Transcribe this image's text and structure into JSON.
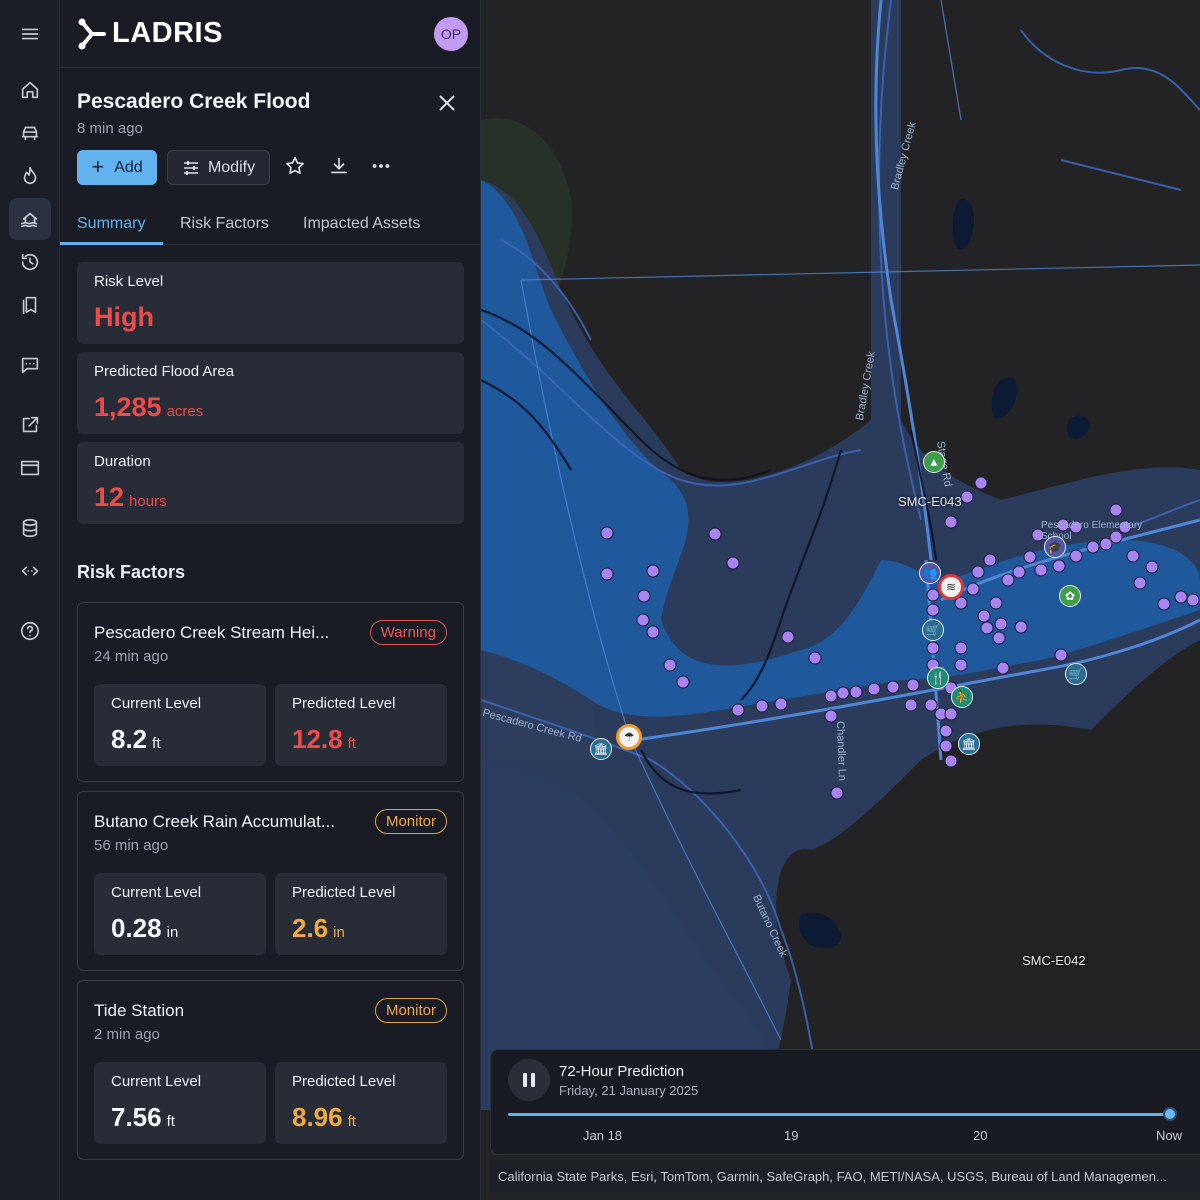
{
  "app": {
    "brand": "LADRIS",
    "user_initials": "OP"
  },
  "rail": {
    "items": [
      "menu-icon",
      "home-icon",
      "car-icon",
      "fire-icon",
      "flood-icon",
      "history-icon",
      "bookmarks-icon",
      "chat-icon",
      "external-link-icon",
      "window-icon",
      "database-icon",
      "code-icon",
      "help-icon"
    ],
    "active": "flood-icon"
  },
  "incident": {
    "title": "Pescadero Creek Flood",
    "updated": "8 min ago",
    "add_label": "Add",
    "modify_label": "Modify"
  },
  "tabs": [
    "Summary",
    "Risk Factors",
    "Impacted Assets"
  ],
  "summary": {
    "risk": {
      "label": "Risk Level",
      "value": "High"
    },
    "area": {
      "label": "Predicted Flood Area",
      "value": "1,285",
      "unit": "acres"
    },
    "duration": {
      "label": "Duration",
      "value": "12",
      "unit": "hours"
    }
  },
  "risk_factors_title": "Risk Factors",
  "risk_factors": [
    {
      "title": "Pescadero Creek Stream Hei...",
      "time": "24 min ago",
      "badge": "Warning",
      "current_label": "Current Level",
      "current": "8.2",
      "current_unit": "ft",
      "predicted_label": "Predicted Level",
      "predicted": "12.8",
      "predicted_unit": "ft"
    },
    {
      "title": "Butano Creek Rain Accumulat...",
      "time": "56 min ago",
      "badge": "Monitor",
      "current_label": "Current Level",
      "current": "0.28",
      "current_unit": "in",
      "predicted_label": "Predicted Level",
      "predicted": "2.6",
      "predicted_unit": "in"
    },
    {
      "title": "Tide Station",
      "time": "2 min ago",
      "badge": "Monitor",
      "current_label": "Current Level",
      "current": "7.56",
      "current_unit": "ft",
      "predicted_label": "Predicted Level",
      "predicted": "8.96",
      "predicted_unit": "ft"
    }
  ],
  "map": {
    "labels": {
      "e043": "SMC-E043",
      "e042": "SMC-E042"
    },
    "roads": {
      "bradley1": "Bradley Creek",
      "bradley2": "Bradley Creek",
      "stage": "Stage Rd",
      "butano": "Butano Creek",
      "creek_rd": "Pescadero Creek Rd",
      "chandler": "Chandler Ln",
      "school": "Pescadero Elementary School"
    }
  },
  "timeline": {
    "title": "72-Hour Prediction",
    "date": "Friday, 21 January 2025",
    "ticks": [
      "Jan 18",
      "19",
      "20",
      "Now"
    ],
    "progress": 1.0
  },
  "attribution": "California State Parks, Esri, TomTom, Garmin, SafeGraph, FAO, METI/NASA, USGS, Bureau of Land Managemen...",
  "colors": {
    "accent": "#62b2f0",
    "danger": "#ee4b4b",
    "warning": "#f0aa3e",
    "flood": "#1f5a9e"
  }
}
